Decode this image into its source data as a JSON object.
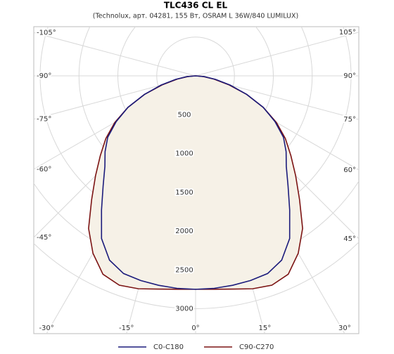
{
  "chart_data": {
    "type": "polar",
    "title": "TLC436 CL EL",
    "subtitle": "(Technolux, арт. 04281, 155 Вт, OSRAM L 36W/840 LUMILUX)",
    "angles": [
      -90,
      -85,
      -80,
      -75,
      -70,
      -65,
      -60,
      -55,
      -50,
      -45,
      -40,
      -35,
      -30,
      -25,
      -20,
      -15,
      -10,
      -5,
      0,
      5,
      10,
      15,
      20,
      25,
      30,
      35,
      40,
      45,
      50,
      55,
      60,
      65,
      70,
      75,
      80,
      85,
      90
    ],
    "series": [
      {
        "name": "C0-C180",
        "color": "#1c1c7c",
        "values": [
          0,
          110,
          260,
          460,
          700,
          960,
          1180,
          1380,
          1520,
          1650,
          1850,
          2110,
          2420,
          2620,
          2710,
          2730,
          2740,
          2748,
          2750,
          2748,
          2740,
          2730,
          2710,
          2620,
          2420,
          2110,
          1850,
          1650,
          1520,
          1380,
          1180,
          960,
          700,
          460,
          260,
          110,
          0
        ]
      },
      {
        "name": "C90-C270",
        "color": "#7c1414",
        "values": [
          0,
          100,
          240,
          440,
          700,
          960,
          1200,
          1410,
          1600,
          1820,
          2080,
          2400,
          2640,
          2820,
          2870,
          2840,
          2790,
          2760,
          2750,
          2760,
          2790,
          2840,
          2870,
          2820,
          2640,
          2400,
          2080,
          1820,
          1600,
          1410,
          1200,
          960,
          700,
          440,
          240,
          100,
          0
        ]
      }
    ],
    "rlim": [
      0,
      3000
    ],
    "rticks": [
      500,
      1000,
      1500,
      2000,
      2500,
      3000
    ],
    "angleticks": [
      {
        "value": -105,
        "label": "-105°"
      },
      {
        "value": -90,
        "label": "-90°"
      },
      {
        "value": -75,
        "label": "-75°"
      },
      {
        "value": -60,
        "label": "-60°"
      },
      {
        "value": -45,
        "label": "-45°"
      },
      {
        "value": -30,
        "label": "-30°"
      },
      {
        "value": -15,
        "label": "-15°"
      },
      {
        "value": 0,
        "label": "0°"
      },
      {
        "value": 15,
        "label": "15°"
      },
      {
        "value": 30,
        "label": "30°"
      },
      {
        "value": 45,
        "label": "45°"
      },
      {
        "value": 60,
        "label": "60°"
      },
      {
        "value": 75,
        "label": "75°"
      },
      {
        "value": 90,
        "label": "90°"
      },
      {
        "value": 105,
        "label": "105°"
      }
    ],
    "fill_color": "#f6f1e7",
    "grid": true
  }
}
